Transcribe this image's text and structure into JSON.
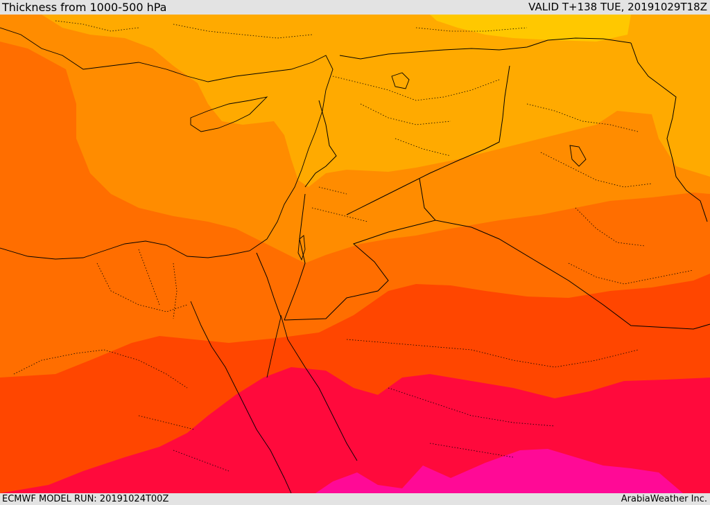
{
  "header": {
    "title": "Thickness from 1000-500 hPa",
    "valid": "VALID T+138 TUE, 20191029T18Z"
  },
  "footer": {
    "model_run": "ECMWF MODEL RUN: 20191024T00Z",
    "credit": "ArabiaWeather Inc."
  },
  "colors": {
    "band_yellow": "#ffc800",
    "band_light_orange": "#ffaa00",
    "band_orange": "#ff8c00",
    "band_dark_orange": "#ff6e00",
    "band_red_orange": "#ff4600",
    "band_crimson": "#ff0a3c",
    "band_magenta": "#ff0a96"
  }
}
